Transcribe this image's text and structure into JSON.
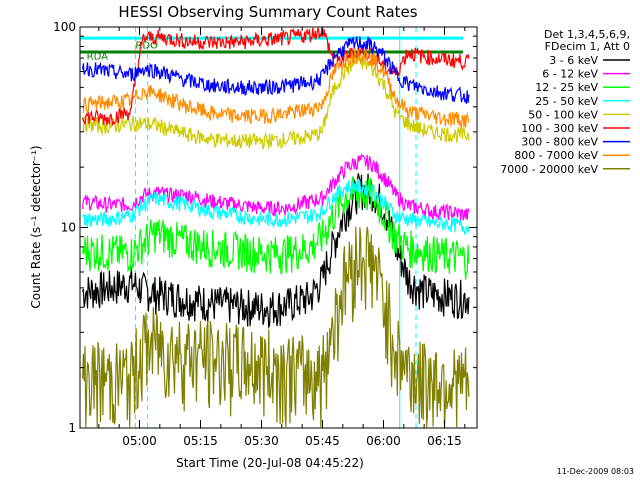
{
  "chart_data": {
    "type": "line",
    "title": "HESSI Observing Summary Count Rates",
    "xlabel": "Start Time (20-Jul-08 04:45:22)",
    "ylabel": "Count Rate (s⁻¹ detector⁻¹)",
    "yscale": "log",
    "ylim": [
      1,
      100
    ],
    "xlim": [
      "04:45:22",
      "06:23:00"
    ],
    "x_tick_labels": [
      "05:00",
      "05:15",
      "05:30",
      "05:45",
      "06:00",
      "06:15"
    ],
    "x_ticks_min": [
      900,
      1800,
      2700,
      3600,
      4500,
      5400
    ],
    "y_tick_labels": [
      "1",
      "10",
      "100"
    ],
    "legend_header": [
      "Det 1,3,4,5,6,9,",
      "FDecim 1, Att 0"
    ],
    "annotations": [
      {
        "text": "RDO",
        "x": "04:59",
        "y": 82
      },
      {
        "text": "RDA",
        "x": "04:47",
        "y": 72
      }
    ],
    "grid": false,
    "x_sample_times": [
      "04:46",
      "04:52",
      "04:58",
      "05:01",
      "05:04",
      "05:07",
      "05:12",
      "05:18",
      "05:24",
      "05:30",
      "05:36",
      "05:42",
      "05:45",
      "05:48",
      "05:51",
      "05:54",
      "05:57",
      "06:00",
      "06:03",
      "06:06",
      "06:09",
      "06:12",
      "06:15",
      "06:18",
      "06:21"
    ],
    "series": [
      {
        "name": "3 - 6 keV",
        "color": "#000000",
        "values": [
          4.8,
          5.0,
          5.3,
          4.9,
          4.7,
          4.6,
          4.4,
          4.2,
          4.1,
          4.0,
          4.1,
          4.5,
          5.5,
          8.5,
          12.5,
          15.5,
          15.5,
          13.0,
          8.0,
          5.6,
          4.9,
          4.7,
          4.6,
          4.5,
          4.5
        ]
      },
      {
        "name": "6 - 12 keV",
        "color": "#ff00ff",
        "values": [
          13.5,
          13.0,
          13.0,
          14.5,
          15.0,
          14.5,
          14.5,
          13.5,
          13.0,
          12.5,
          12.5,
          13.5,
          14.0,
          17.0,
          20.0,
          21.5,
          21.0,
          18.0,
          14.5,
          12.8,
          12.5,
          12.0,
          12.0,
          11.8,
          11.5
        ]
      },
      {
        "name": "12 - 25 keV",
        "color": "#00ff00",
        "values": [
          7.8,
          7.6,
          7.5,
          8.5,
          9.5,
          9.0,
          8.5,
          8.0,
          7.8,
          7.5,
          7.5,
          8.0,
          9.0,
          12.0,
          14.5,
          15.0,
          14.5,
          12.0,
          9.0,
          8.0,
          7.8,
          7.5,
          7.3,
          7.2,
          7.0
        ]
      },
      {
        "name": "25 - 50 keV",
        "color": "#00ffff",
        "values": [
          11.0,
          11.0,
          11.5,
          13.0,
          14.0,
          13.5,
          13.0,
          12.0,
          11.5,
          11.0,
          11.0,
          11.5,
          12.0,
          14.5,
          16.0,
          16.0,
          15.5,
          13.5,
          11.5,
          11.0,
          10.8,
          10.5,
          10.5,
          10.3,
          10.0
        ]
      },
      {
        "name": "50 - 100 keV",
        "color": "#cccc00",
        "values": [
          33.0,
          32.0,
          33.0,
          33.0,
          32.5,
          31.0,
          29.0,
          27.5,
          27.0,
          27.0,
          27.5,
          28.5,
          30.0,
          50.0,
          62.0,
          68.0,
          63.0,
          52.0,
          37.0,
          33.0,
          31.0,
          30.0,
          29.5,
          29.0,
          29.0
        ]
      },
      {
        "name": "100 - 300 keV",
        "color": "#ff0000",
        "values": [
          36.0,
          35.0,
          38.0,
          88.0,
          89.0,
          88.0,
          85.0,
          84.0,
          84.0,
          86.0,
          88.0,
          92.0,
          97.0,
          64.0,
          72.0,
          76.0,
          74.0,
          64.0,
          58.0,
          75.0,
          72.0,
          70.0,
          69.0,
          68.0,
          67.0
        ]
      },
      {
        "name": "300 - 800 keV",
        "color": "#0000ff",
        "values": [
          63.0,
          60.0,
          58.0,
          62.0,
          61.0,
          58.0,
          54.0,
          51.0,
          50.0,
          50.0,
          51.0,
          53.0,
          56.0,
          72.0,
          80.0,
          84.0,
          81.0,
          72.0,
          58.0,
          52.0,
          50.0,
          48.0,
          47.0,
          46.0,
          45.0
        ]
      },
      {
        "name": "800 - 7000 keV",
        "color": "#ff8c00",
        "values": [
          41.0,
          42.0,
          43.0,
          48.0,
          47.0,
          44.0,
          40.0,
          37.0,
          36.0,
          36.0,
          37.0,
          39.0,
          41.0,
          60.0,
          70.0,
          74.0,
          70.0,
          60.0,
          44.0,
          38.0,
          37.0,
          36.0,
          35.0,
          35.0,
          34.0
        ]
      },
      {
        "name": "7000 - 20000 keV",
        "color": "#808000",
        "values": [
          1.8,
          1.8,
          1.8,
          2.6,
          2.7,
          2.5,
          2.4,
          2.3,
          2.2,
          2.1,
          2.0,
          1.9,
          1.9,
          3.5,
          6.0,
          7.5,
          7.0,
          4.5,
          2.5,
          2.0,
          1.8,
          1.8,
          1.8,
          1.7,
          1.7
        ]
      }
    ],
    "reference_lines": [
      {
        "label": "RDO",
        "color": "#00ffff",
        "value": 88
      },
      {
        "label": "RDA",
        "color": "#008000",
        "value": 75
      }
    ],
    "boundaries_solid": [
      "04:45:22",
      "06:04"
    ],
    "boundaries_dashed": [
      "04:59",
      "05:02",
      "06:08",
      "06:23"
    ]
  },
  "footer": {
    "date_stamp": "11-Dec-2009 08:03"
  }
}
